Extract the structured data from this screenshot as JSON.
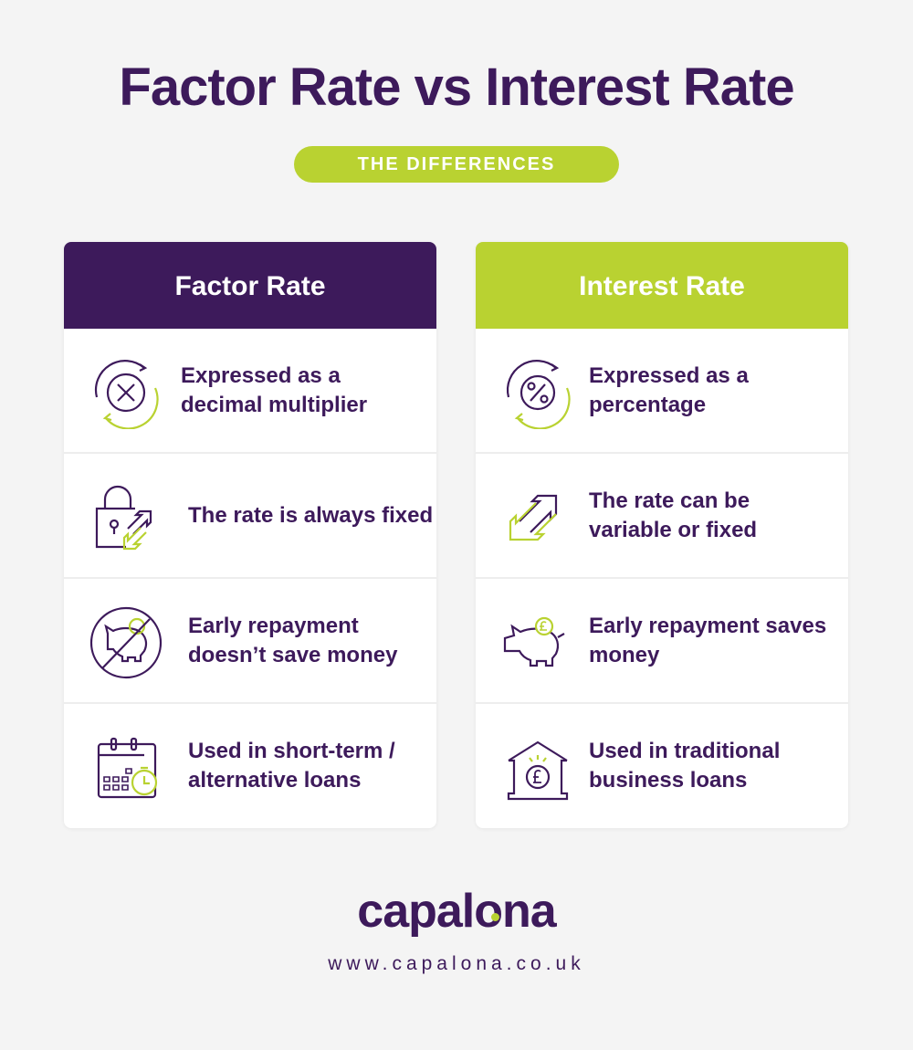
{
  "title": "Factor Rate vs Interest Rate",
  "subtitle": "THE DIFFERENCES",
  "colors": {
    "purple": "#3d1a5b",
    "green": "#b9d231",
    "background": "#f4f4f4"
  },
  "columns": [
    {
      "heading": "Factor Rate",
      "rows": [
        {
          "icon": "multiply-cycle-icon",
          "text": "Expressed as a decimal multiplier"
        },
        {
          "icon": "padlock-arrows-icon",
          "text": "The rate is always fixed"
        },
        {
          "icon": "no-piggy-bank-icon",
          "text": "Early repayment doesn’t save money"
        },
        {
          "icon": "calendar-clock-icon",
          "text": "Used in short-term / alternative loans"
        }
      ]
    },
    {
      "heading": "Interest Rate",
      "rows": [
        {
          "icon": "percent-cycle-icon",
          "text": "Expressed as a percentage"
        },
        {
          "icon": "up-down-arrows-icon",
          "text": "The rate can be variable or fixed"
        },
        {
          "icon": "piggy-bank-icon",
          "text": "Early repayment saves money"
        },
        {
          "icon": "bank-pound-icon",
          "text": "Used in traditional business loans"
        }
      ]
    }
  ],
  "footer": {
    "logo": "capalona",
    "url": "www.capalona.co.uk"
  }
}
